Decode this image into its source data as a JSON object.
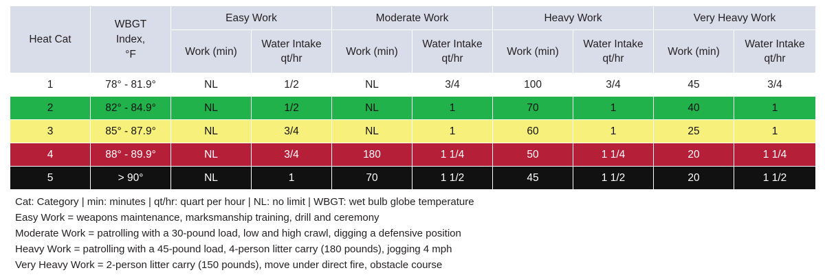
{
  "table": {
    "header": {
      "heat_cat": "Heat Cat",
      "wbgt": "WBGT Index, °F",
      "groups": [
        "Easy Work",
        "Moderate Work",
        "Heavy Work",
        "Very Heavy Work"
      ],
      "work_min": "Work (min)",
      "water_intake": "Water Intake qt/hr"
    },
    "rows": [
      [
        "1",
        "78° - 81.9°",
        "NL",
        "1/2",
        "NL",
        "3/4",
        "100",
        "3/4",
        "45",
        "3/4"
      ],
      [
        "2",
        "82° - 84.9°",
        "NL",
        "1/2",
        "NL",
        "1",
        "70",
        "1",
        "40",
        "1"
      ],
      [
        "3",
        "85° - 87.9°",
        "NL",
        "3/4",
        "NL",
        "1",
        "60",
        "1",
        "25",
        "1"
      ],
      [
        "4",
        "88° - 89.9°",
        "NL",
        "3/4",
        "180",
        "1 1/4",
        "50",
        "1 1/4",
        "20",
        "1 1/4"
      ],
      [
        "5",
        "> 90°",
        "NL",
        "1",
        "70",
        "1 1/2",
        "45",
        "1 1/2",
        "20",
        "1 1/2"
      ]
    ],
    "row_colors": [
      "#ffffff",
      "#21b24b",
      "#f7f07a",
      "#b51f38",
      "#111111"
    ],
    "header_color": "#d9dce9"
  },
  "notes": [
    "Cat: Category | min: minutes | qt/hr: quart per hour | NL: no limit | WBGT: wet bulb globe temperature",
    "Easy Work = weapons maintenance, marksmanship training, drill and ceremony",
    "Moderate Work = patrolling with a 30-pound load, low and high crawl, digging a defensive position",
    "Heavy Work = patrolling with a 45-pound load, 4-person litter carry (180 pounds), jogging 4 mph",
    "Very Heavy Work = 2-person litter carry (150 pounds), move under direct fire, obstacle course"
  ]
}
